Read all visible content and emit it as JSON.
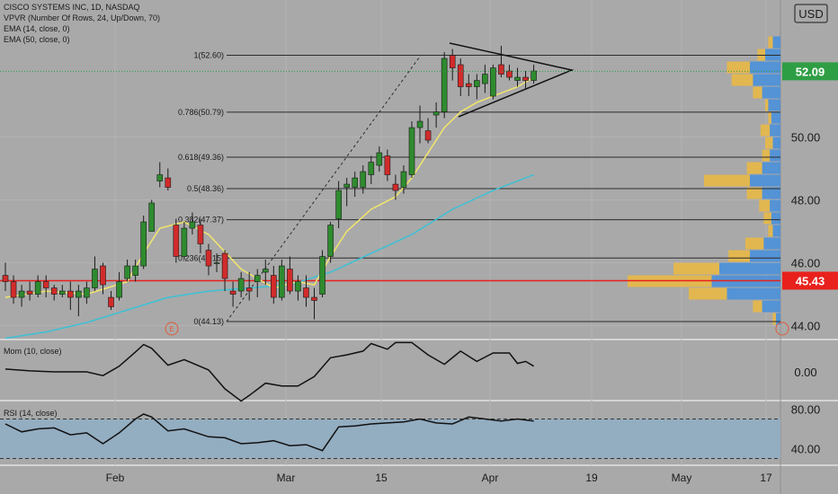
{
  "header": {
    "symbol": "CISCO SYSTEMS INC, 1D, NASDAQ",
    "indicators": [
      "VPVR (Number Of Rows, 24, Up/Down, 70)",
      "EMA (14, close, 0)",
      "EMA (50, close, 0)"
    ],
    "currency": "USD"
  },
  "colors": {
    "background": "#a9a9a9",
    "bull": "#2e8b2e",
    "bear": "#d22b2b",
    "ema14": "#f2e66b",
    "ema50": "#3cc1d6",
    "support_line": "#e8211d",
    "fib_line": "#2b2b2b",
    "vp_up": "#4a90d9",
    "vp_down": "#e8b846",
    "rsi_band": "#8faec6",
    "price_badge_current": "#2e9e44",
    "price_badge_support": "#e8211d"
  },
  "chart_data": [
    {
      "type": "candlestick",
      "x_axis_labels": [
        "Feb",
        "Mar",
        "15",
        "Apr",
        "19",
        "May",
        "17"
      ],
      "y_axis_ticks": [
        "44.00",
        "46.00",
        "48.00",
        "50.00"
      ],
      "ylim": [
        43.6,
        54.0
      ],
      "current_price": "52.09",
      "support_price": "45.43",
      "ohlc": [
        [
          45.6,
          46.0,
          45.1,
          45.4
        ],
        [
          45.4,
          45.6,
          44.7,
          44.9
        ],
        [
          44.9,
          45.3,
          44.6,
          45.1
        ],
        [
          45.1,
          45.4,
          44.8,
          45.0
        ],
        [
          45.0,
          45.6,
          44.9,
          45.4
        ],
        [
          45.4,
          45.6,
          44.9,
          45.2
        ],
        [
          45.2,
          45.3,
          44.8,
          45.0
        ],
        [
          45.0,
          45.3,
          44.9,
          45.1
        ],
        [
          45.1,
          45.4,
          44.5,
          44.9
        ],
        [
          44.9,
          45.3,
          44.3,
          45.1
        ],
        [
          44.9,
          45.4,
          44.7,
          45.2
        ],
        [
          45.2,
          46.2,
          45.1,
          45.8
        ],
        [
          45.9,
          46.0,
          45.0,
          45.3
        ],
        [
          44.9,
          45.1,
          44.5,
          44.6
        ],
        [
          44.9,
          45.7,
          44.8,
          45.4
        ],
        [
          45.5,
          46.1,
          45.4,
          45.9
        ],
        [
          45.6,
          46.1,
          45.4,
          45.9
        ],
        [
          45.9,
          47.5,
          45.8,
          47.3
        ],
        [
          47.0,
          48.0,
          47.0,
          47.9
        ],
        [
          48.6,
          49.2,
          48.4,
          48.8
        ],
        [
          48.7,
          49.0,
          48.3,
          48.4
        ],
        [
          47.2,
          47.4,
          46.0,
          46.2
        ],
        [
          46.2,
          47.3,
          46.1,
          47.1
        ],
        [
          47.1,
          47.6,
          46.9,
          47.3
        ],
        [
          47.2,
          47.4,
          46.3,
          46.6
        ],
        [
          46.4,
          46.6,
          45.6,
          45.9
        ],
        [
          46.0,
          46.3,
          45.7,
          46.0
        ],
        [
          46.3,
          46.4,
          45.1,
          45.5
        ],
        [
          45.1,
          45.4,
          44.6,
          45.0
        ],
        [
          45.1,
          45.7,
          44.9,
          45.5
        ],
        [
          45.2,
          45.7,
          44.8,
          45.1
        ],
        [
          45.4,
          45.8,
          44.9,
          45.6
        ],
        [
          45.7,
          46.1,
          45.3,
          45.8
        ],
        [
          45.6,
          45.9,
          44.7,
          44.9
        ],
        [
          44.9,
          46.1,
          44.8,
          45.9
        ],
        [
          45.8,
          46.2,
          45.0,
          45.1
        ],
        [
          45.1,
          45.6,
          44.8,
          45.4
        ],
        [
          45.2,
          45.6,
          44.6,
          44.9
        ],
        [
          44.9,
          45.2,
          44.2,
          44.8
        ],
        [
          45.0,
          46.4,
          44.9,
          46.2
        ],
        [
          46.2,
          47.3,
          46.0,
          47.2
        ],
        [
          47.4,
          48.6,
          47.1,
          48.3
        ],
        [
          48.4,
          48.7,
          47.8,
          48.5
        ],
        [
          48.4,
          48.9,
          48.1,
          48.7
        ],
        [
          48.4,
          49.1,
          48.2,
          48.9
        ],
        [
          48.8,
          49.4,
          48.5,
          49.2
        ],
        [
          49.1,
          49.7,
          48.9,
          49.5
        ],
        [
          49.4,
          49.6,
          48.6,
          48.8
        ],
        [
          48.5,
          48.8,
          48.0,
          48.3
        ],
        [
          48.4,
          49.1,
          48.2,
          48.9
        ],
        [
          48.8,
          50.5,
          48.7,
          50.3
        ],
        [
          50.3,
          51.0,
          49.8,
          50.5
        ],
        [
          50.2,
          50.6,
          49.8,
          49.9
        ],
        [
          50.7,
          51.1,
          50.3,
          50.8
        ],
        [
          50.8,
          52.7,
          50.6,
          52.5
        ],
        [
          52.6,
          52.8,
          51.8,
          52.2
        ],
        [
          52.3,
          52.5,
          51.3,
          51.6
        ],
        [
          51.7,
          52.0,
          51.3,
          51.6
        ],
        [
          51.6,
          52.0,
          51.2,
          51.8
        ],
        [
          51.7,
          52.3,
          51.4,
          52.0
        ],
        [
          51.3,
          52.3,
          51.2,
          52.2
        ],
        [
          52.3,
          52.9,
          51.9,
          52.0
        ],
        [
          52.1,
          52.3,
          51.8,
          51.9
        ],
        [
          51.8,
          52.2,
          51.6,
          51.9
        ],
        [
          51.9,
          52.1,
          51.5,
          51.8
        ],
        [
          51.8,
          52.3,
          51.7,
          52.1
        ]
      ],
      "fib_levels": [
        {
          "label": "1(52.60)",
          "price": 52.6
        },
        {
          "label": "0.786(50.79)",
          "price": 50.79
        },
        {
          "label": "0.618(49.36)",
          "price": 49.36
        },
        {
          "label": "0.5(48.36)",
          "price": 48.36
        },
        {
          "label": "0.382(47.37)",
          "price": 47.37
        },
        {
          "label": "0.236(46.15)",
          "price": 46.15
        },
        {
          "label": "0(44.13)",
          "price": 44.13
        }
      ],
      "ema14": [
        [
          0,
          44.9
        ],
        [
          5,
          45.1
        ],
        [
          10,
          45.0
        ],
        [
          15,
          45.4
        ],
        [
          17,
          46.3
        ],
        [
          19,
          47.1
        ],
        [
          22,
          47.3
        ],
        [
          25,
          46.9
        ],
        [
          29,
          45.8
        ],
        [
          33,
          45.2
        ],
        [
          36,
          45.4
        ],
        [
          38,
          45.3
        ],
        [
          40,
          46.2
        ],
        [
          42,
          47.0
        ],
        [
          45,
          47.7
        ],
        [
          48,
          48.1
        ],
        [
          50,
          48.7
        ],
        [
          54,
          50.3
        ],
        [
          56,
          50.8
        ],
        [
          58,
          51.1
        ],
        [
          61,
          51.4
        ],
        [
          63,
          51.6
        ],
        [
          65,
          51.9
        ]
      ],
      "ema50": [
        [
          0,
          43.6
        ],
        [
          5,
          43.8
        ],
        [
          10,
          44.1
        ],
        [
          15,
          44.5
        ],
        [
          20,
          44.9
        ],
        [
          25,
          45.1
        ],
        [
          30,
          45.2
        ],
        [
          35,
          45.3
        ],
        [
          40,
          45.7
        ],
        [
          45,
          46.3
        ],
        [
          50,
          46.9
        ],
        [
          55,
          47.7
        ],
        [
          60,
          48.3
        ],
        [
          65,
          48.8
        ]
      ],
      "volume_profile": [
        {
          "price_low": 52.8,
          "price_high": 53.2,
          "up": 0.05,
          "down": 0.03
        },
        {
          "price_low": 52.4,
          "price_high": 52.8,
          "up": 0.1,
          "down": 0.05
        },
        {
          "price_low": 52.0,
          "price_high": 52.4,
          "up": 0.2,
          "down": 0.15
        },
        {
          "price_low": 51.6,
          "price_high": 52.0,
          "up": 0.18,
          "down": 0.14
        },
        {
          "price_low": 51.2,
          "price_high": 51.6,
          "up": 0.12,
          "down": 0.06
        },
        {
          "price_low": 50.8,
          "price_high": 51.2,
          "up": 0.08,
          "down": 0.02
        },
        {
          "price_low": 50.4,
          "price_high": 50.8,
          "up": 0.06,
          "down": 0.02
        },
        {
          "price_low": 50.0,
          "price_high": 50.4,
          "up": 0.07,
          "down": 0.06
        },
        {
          "price_low": 49.6,
          "price_high": 50.0,
          "up": 0.05,
          "down": 0.05
        },
        {
          "price_low": 49.2,
          "price_high": 49.6,
          "up": 0.07,
          "down": 0.05
        },
        {
          "price_low": 48.8,
          "price_high": 49.2,
          "up": 0.12,
          "down": 0.1
        },
        {
          "price_low": 48.4,
          "price_high": 48.8,
          "up": 0.2,
          "down": 0.3
        },
        {
          "price_low": 48.0,
          "price_high": 48.4,
          "up": 0.12,
          "down": 0.1
        },
        {
          "price_low": 47.6,
          "price_high": 48.0,
          "up": 0.07,
          "down": 0.07
        },
        {
          "price_low": 47.2,
          "price_high": 47.6,
          "up": 0.06,
          "down": 0.05
        },
        {
          "price_low": 46.8,
          "price_high": 47.2,
          "up": 0.05,
          "down": 0.03
        },
        {
          "price_low": 46.4,
          "price_high": 46.8,
          "up": 0.11,
          "down": 0.12
        },
        {
          "price_low": 46.0,
          "price_high": 46.4,
          "up": 0.2,
          "down": 0.14
        },
        {
          "price_low": 45.6,
          "price_high": 46.0,
          "up": 0.4,
          "down": 0.3
        },
        {
          "price_low": 45.2,
          "price_high": 45.6,
          "up": 0.45,
          "down": 0.55
        },
        {
          "price_low": 44.8,
          "price_high": 45.2,
          "up": 0.35,
          "down": 0.25
        },
        {
          "price_low": 44.4,
          "price_high": 44.8,
          "up": 0.12,
          "down": 0.06
        },
        {
          "price_low": 44.0,
          "price_high": 44.4,
          "up": 0.03,
          "down": 0.02
        }
      ]
    },
    {
      "type": "line",
      "name": "Mom (10, close)",
      "y_axis_ticks": [
        "0.00"
      ],
      "ylim": [
        -3.5,
        3.5
      ],
      "points": [
        [
          0,
          0.3
        ],
        [
          3,
          0.1
        ],
        [
          6,
          0
        ],
        [
          10,
          0
        ],
        [
          12,
          -0.4
        ],
        [
          14,
          0.6
        ],
        [
          16,
          2.1
        ],
        [
          17,
          2.9
        ],
        [
          18,
          2.5
        ],
        [
          20,
          0.7
        ],
        [
          22,
          1.3
        ],
        [
          25,
          0.2
        ],
        [
          27,
          -1.8
        ],
        [
          29,
          -3.1
        ],
        [
          30,
          -2.5
        ],
        [
          32,
          -1.2
        ],
        [
          34,
          -1.5
        ],
        [
          36,
          -1.5
        ],
        [
          38,
          -0.5
        ],
        [
          40,
          1.5
        ],
        [
          42,
          1.8
        ],
        [
          44,
          2.2
        ],
        [
          45,
          3.0
        ],
        [
          47,
          2.4
        ],
        [
          48,
          3.1
        ],
        [
          50,
          3.1
        ],
        [
          52,
          1.8
        ],
        [
          54,
          0.8
        ],
        [
          56,
          2.2
        ],
        [
          58,
          1.1
        ],
        [
          60,
          2.0
        ],
        [
          62,
          2.0
        ],
        [
          63,
          0.9
        ],
        [
          64,
          1.1
        ],
        [
          65,
          0.6
        ]
      ]
    },
    {
      "type": "line",
      "name": "RSI (14, close)",
      "y_axis_ticks": [
        "80.00",
        "40.00"
      ],
      "ylim": [
        25,
        85
      ],
      "band": [
        30,
        70
      ],
      "points": [
        [
          0,
          65
        ],
        [
          2,
          57
        ],
        [
          4,
          60
        ],
        [
          6,
          61
        ],
        [
          8,
          54
        ],
        [
          10,
          56
        ],
        [
          12,
          45
        ],
        [
          14,
          56
        ],
        [
          16,
          70
        ],
        [
          17,
          75
        ],
        [
          18,
          72
        ],
        [
          20,
          58
        ],
        [
          22,
          60
        ],
        [
          25,
          52
        ],
        [
          27,
          51
        ],
        [
          29,
          45
        ],
        [
          31,
          46
        ],
        [
          33,
          48
        ],
        [
          35,
          43
        ],
        [
          37,
          44
        ],
        [
          39,
          38
        ],
        [
          41,
          62
        ],
        [
          43,
          63
        ],
        [
          45,
          65
        ],
        [
          47,
          66
        ],
        [
          49,
          67
        ],
        [
          51,
          70
        ],
        [
          53,
          66
        ],
        [
          55,
          65
        ],
        [
          57,
          72
        ],
        [
          59,
          70
        ],
        [
          61,
          68
        ],
        [
          63,
          70
        ],
        [
          65,
          68
        ]
      ]
    }
  ]
}
